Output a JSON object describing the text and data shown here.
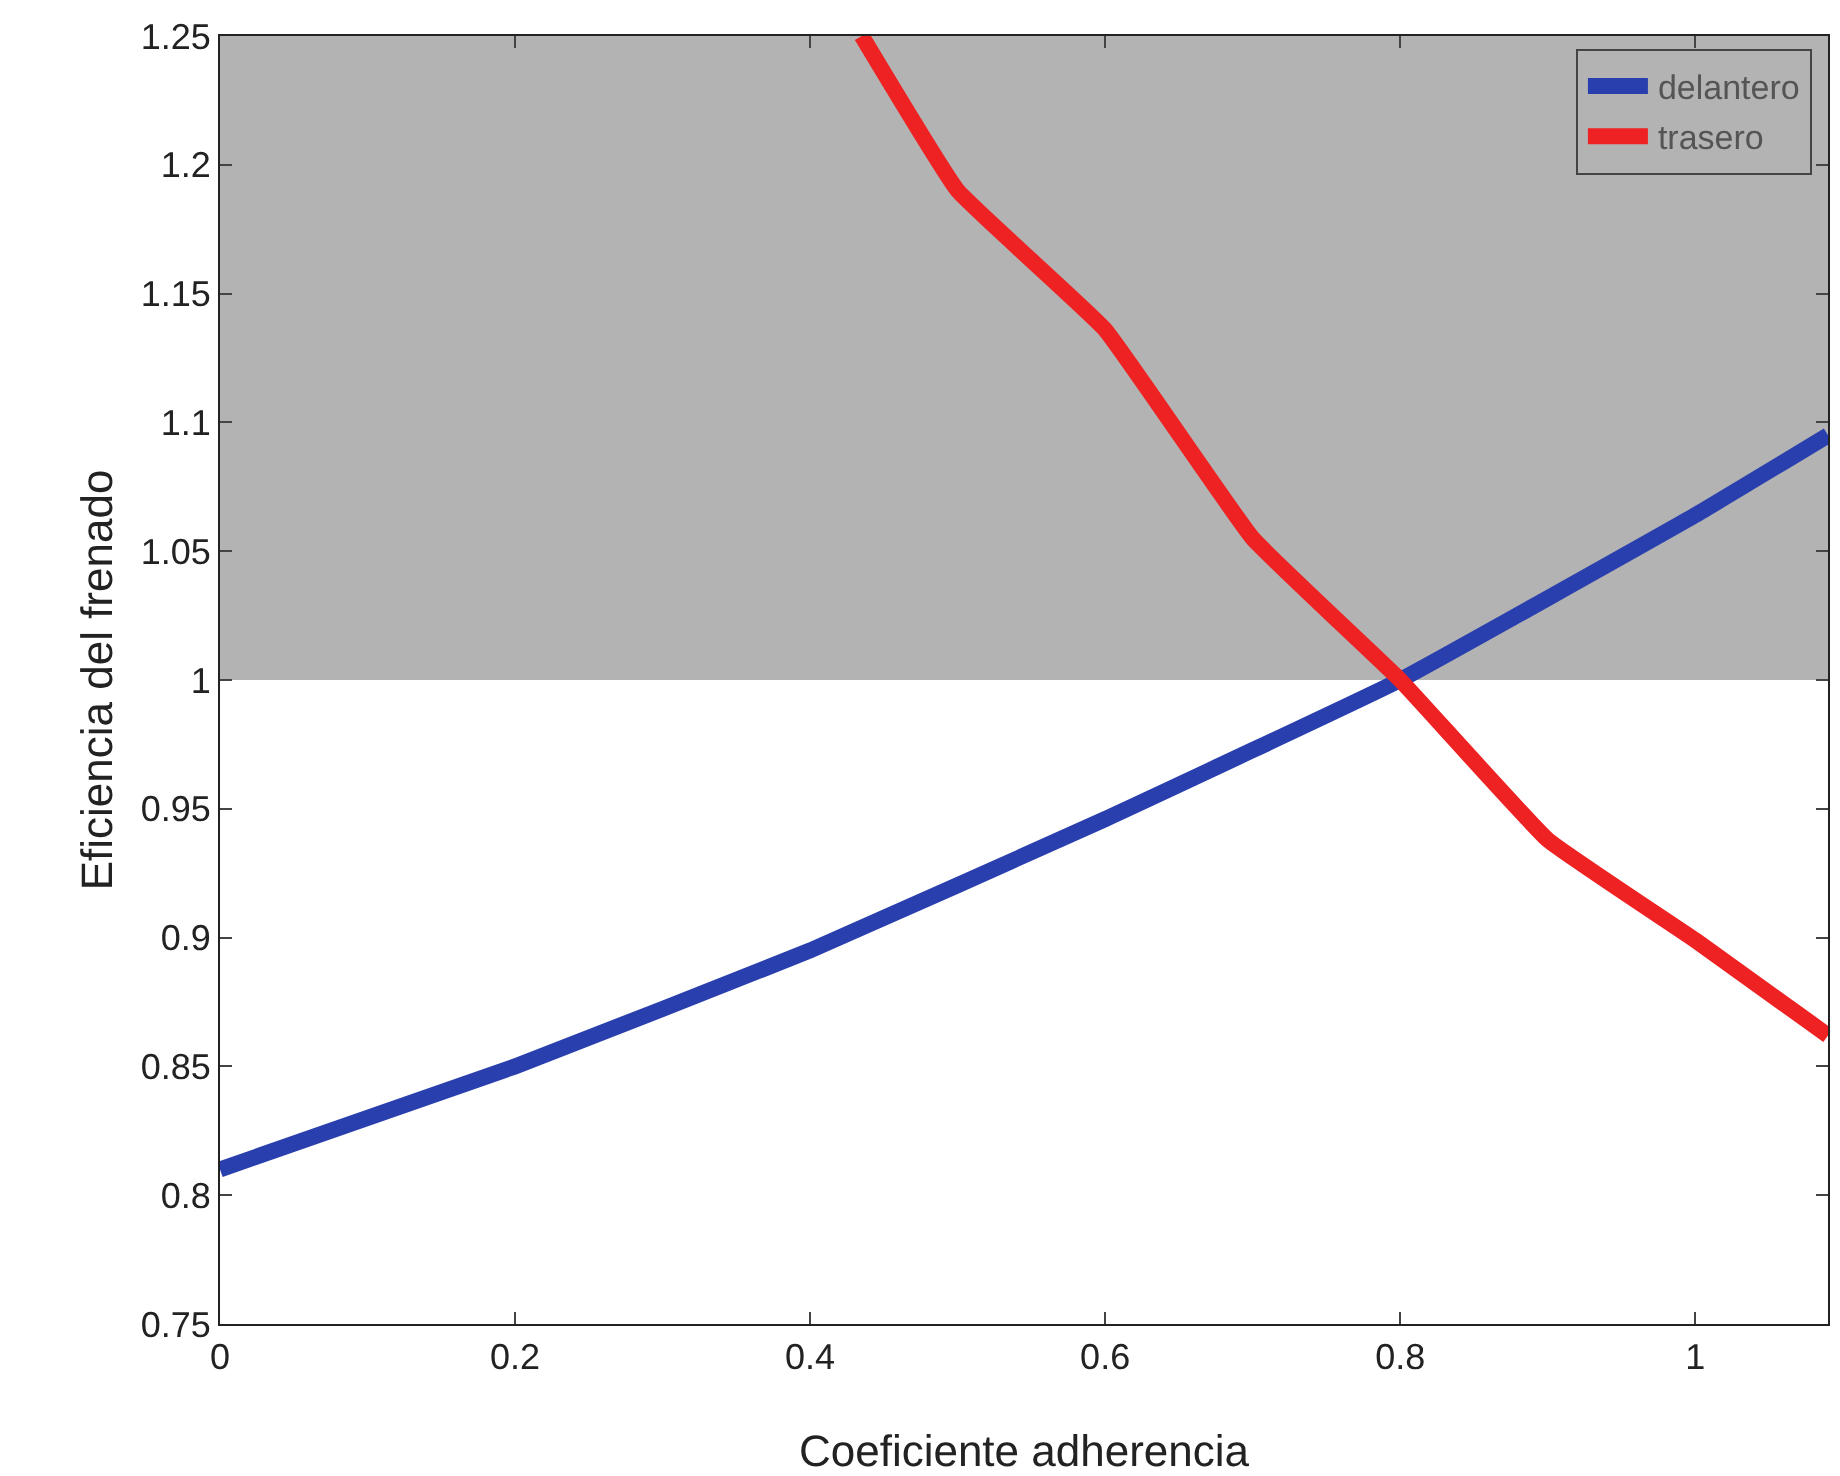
{
  "chart_data": {
    "type": "line",
    "xlabel": "Coeficiente adherencia",
    "ylabel": "Eficiencia del frenado",
    "xlim": [
      0,
      1.09
    ],
    "xticks": [
      0,
      0.2,
      0.4,
      0.6,
      0.8,
      1
    ],
    "ylim": [
      0.75,
      1.25
    ],
    "yticks": [
      0.75,
      0.8,
      0.85,
      0.9,
      0.95,
      1,
      1.05,
      1.1,
      1.15,
      1.2,
      1.25
    ],
    "series": [
      {
        "name": "delantero",
        "color": "#2a3fae",
        "x": [
          0,
          0.2,
          0.4,
          0.6,
          0.8,
          1.0,
          1.09
        ],
        "values": [
          0.81,
          0.85,
          0.895,
          0.946,
          1.0,
          1.064,
          1.095
        ]
      },
      {
        "name": "trasero",
        "color": "#ee2222",
        "x": [
          0.435,
          0.5,
          0.6,
          0.7,
          0.8,
          0.9,
          1.0,
          1.09
        ],
        "values": [
          1.25,
          1.19,
          1.136,
          1.055,
          1.0,
          0.938,
          0.899,
          0.862
        ]
      }
    ],
    "bands": [
      {
        "axis": "y",
        "from": 1,
        "to": 1.25,
        "color": "#b3b3b3"
      }
    ],
    "legend": "top right",
    "grid": false,
    "marker": "none",
    "line_style": "solid"
  }
}
